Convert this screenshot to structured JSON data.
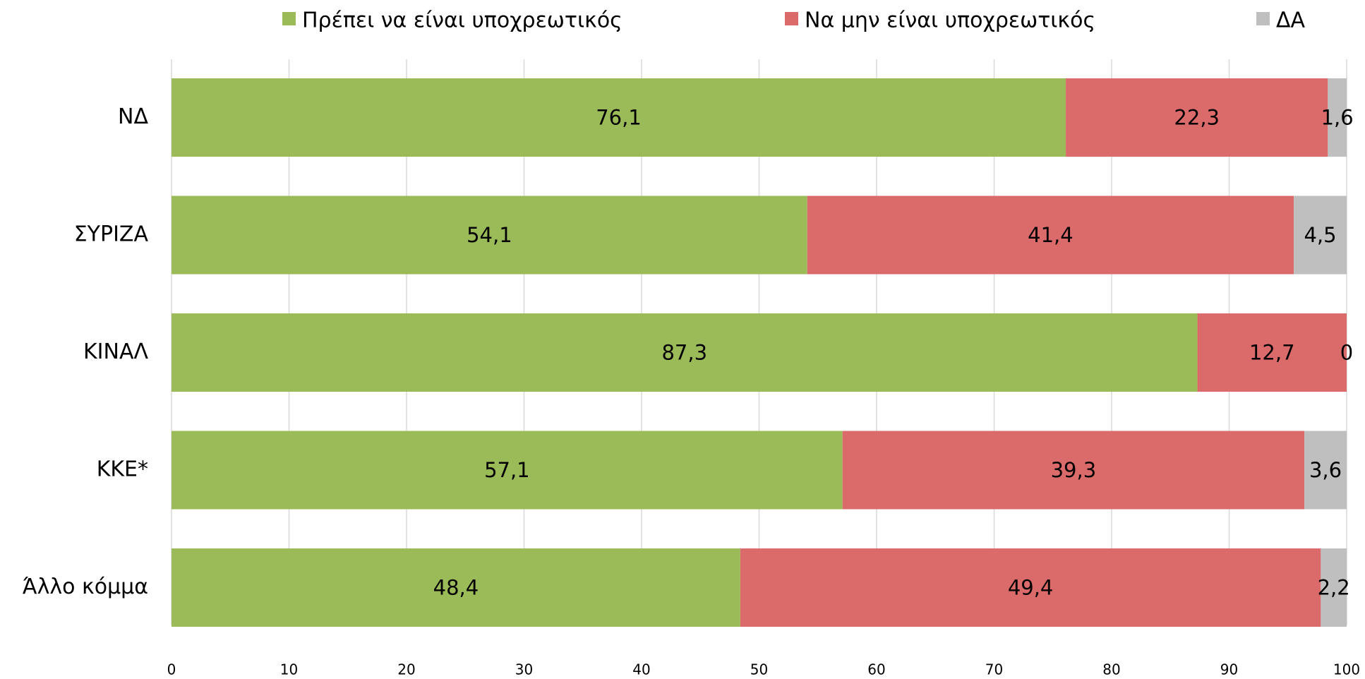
{
  "chart_data": {
    "type": "stacked-barh",
    "categories": [
      "ΝΔ",
      "ΣΥΡΙΖΑ",
      "ΚΙΝΑΛ",
      "ΚΚΕ*",
      "Άλλο κόμμα"
    ],
    "series": [
      {
        "name": "Πρέπει να είναι υποχρεωτικός",
        "color": "#9bbb59",
        "values": [
          76.1,
          54.1,
          87.3,
          57.1,
          48.4
        ],
        "value_labels": [
          "76,1",
          "54,1",
          "87,3",
          "57,1",
          "48,4"
        ]
      },
      {
        "name": "Να μην είναι υποχρεωτικός",
        "color": "#db6b6b",
        "values": [
          22.3,
          41.4,
          12.7,
          39.3,
          49.4
        ],
        "value_labels": [
          "22,3",
          "41,4",
          "12,7",
          "39,3",
          "49,4"
        ]
      },
      {
        "name": "ΔΑ",
        "color": "#bfbfbf",
        "values": [
          1.6,
          4.5,
          0,
          3.6,
          2.2
        ],
        "value_labels": [
          "1,6",
          "4,5",
          "0",
          "3,6",
          "2,2"
        ]
      }
    ],
    "xlim": [
      0,
      100
    ],
    "xticks": [
      0,
      10,
      20,
      30,
      40,
      50,
      60,
      70,
      80,
      90,
      100
    ],
    "grid": true,
    "legend": "top"
  }
}
